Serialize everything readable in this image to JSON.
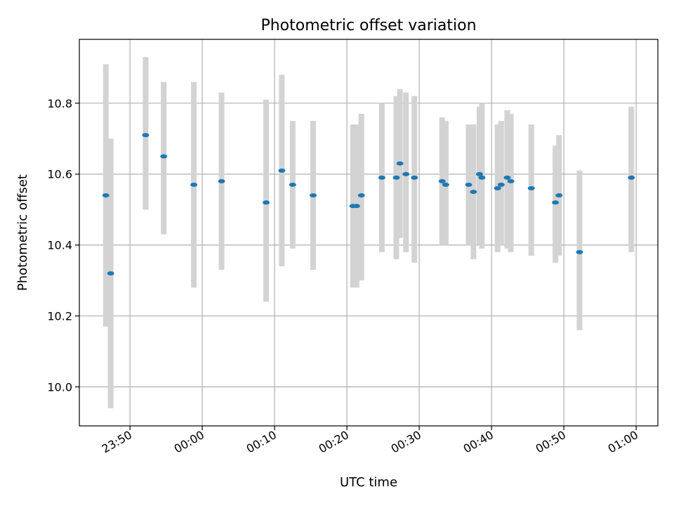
{
  "chart_data": {
    "type": "scatter",
    "title": "Photometric offset variation",
    "xlabel": "UTC time",
    "ylabel": "Photometric offset",
    "x_tick_labels": [
      "23:50",
      "00:00",
      "00:10",
      "00:20",
      "00:30",
      "00:40",
      "00:50",
      "01:00"
    ],
    "x_tick_minutes": [
      -10,
      0,
      10,
      20,
      30,
      40,
      50,
      60
    ],
    "y_ticks": [
      10.0,
      10.2,
      10.4,
      10.6,
      10.8
    ],
    "y_tick_labels": [
      "10.0",
      "10.2",
      "10.4",
      "10.6",
      "10.8"
    ],
    "xlim_minutes": [
      -17,
      63
    ],
    "ylim": [
      9.89,
      10.98
    ],
    "grid": true,
    "colors": {
      "point": "#1f77b4",
      "errorbar": "#d3d3d3",
      "grid": "#b0b0b0"
    },
    "points": [
      {
        "t": "23:46:40",
        "y": 10.54,
        "low": 10.17,
        "high": 10.91
      },
      {
        "t": "23:47:20",
        "y": 10.32,
        "low": 9.94,
        "high": 10.7
      },
      {
        "t": "23:52:10",
        "y": 10.71,
        "low": 10.5,
        "high": 10.93
      },
      {
        "t": "23:54:40",
        "y": 10.65,
        "low": 10.43,
        "high": 10.86
      },
      {
        "t": "23:58:50",
        "y": 10.57,
        "low": 10.28,
        "high": 10.86
      },
      {
        "t": "00:02:40",
        "y": 10.58,
        "low": 10.33,
        "high": 10.83
      },
      {
        "t": "00:08:50",
        "y": 10.52,
        "low": 10.24,
        "high": 10.81
      },
      {
        "t": "00:11:00",
        "y": 10.61,
        "low": 10.34,
        "high": 10.88
      },
      {
        "t": "00:12:30",
        "y": 10.57,
        "low": 10.39,
        "high": 10.75
      },
      {
        "t": "00:15:20",
        "y": 10.54,
        "low": 10.33,
        "high": 10.75
      },
      {
        "t": "00:20:50",
        "y": 10.51,
        "low": 10.28,
        "high": 10.74
      },
      {
        "t": "00:21:20",
        "y": 10.51,
        "low": 10.28,
        "high": 10.74
      },
      {
        "t": "00:22:00",
        "y": 10.54,
        "low": 10.3,
        "high": 10.77
      },
      {
        "t": "00:24:50",
        "y": 10.59,
        "low": 10.38,
        "high": 10.8
      },
      {
        "t": "00:26:50",
        "y": 10.59,
        "low": 10.36,
        "high": 10.82
      },
      {
        "t": "00:27:20",
        "y": 10.63,
        "low": 10.42,
        "high": 10.84
      },
      {
        "t": "00:28:10",
        "y": 10.6,
        "low": 10.38,
        "high": 10.83
      },
      {
        "t": "00:29:20",
        "y": 10.59,
        "low": 10.35,
        "high": 10.82
      },
      {
        "t": "00:33:10",
        "y": 10.58,
        "low": 10.4,
        "high": 10.76
      },
      {
        "t": "00:33:40",
        "y": 10.57,
        "low": 10.4,
        "high": 10.75
      },
      {
        "t": "00:36:50",
        "y": 10.57,
        "low": 10.4,
        "high": 10.74
      },
      {
        "t": "00:37:30",
        "y": 10.55,
        "low": 10.36,
        "high": 10.74
      },
      {
        "t": "00:38:20",
        "y": 10.6,
        "low": 10.4,
        "high": 10.79
      },
      {
        "t": "00:38:40",
        "y": 10.59,
        "low": 10.39,
        "high": 10.8
      },
      {
        "t": "00:40:50",
        "y": 10.56,
        "low": 10.38,
        "high": 10.74
      },
      {
        "t": "00:41:20",
        "y": 10.57,
        "low": 10.4,
        "high": 10.75
      },
      {
        "t": "00:42:10",
        "y": 10.59,
        "low": 10.39,
        "high": 10.78
      },
      {
        "t": "00:42:40",
        "y": 10.58,
        "low": 10.38,
        "high": 10.77
      },
      {
        "t": "00:45:30",
        "y": 10.56,
        "low": 10.37,
        "high": 10.74
      },
      {
        "t": "00:48:50",
        "y": 10.52,
        "low": 10.35,
        "high": 10.68
      },
      {
        "t": "00:49:20",
        "y": 10.54,
        "low": 10.37,
        "high": 10.71
      },
      {
        "t": "00:52:10",
        "y": 10.38,
        "low": 10.16,
        "high": 10.61
      },
      {
        "t": "00:59:20",
        "y": 10.59,
        "low": 10.38,
        "high": 10.79
      }
    ]
  }
}
